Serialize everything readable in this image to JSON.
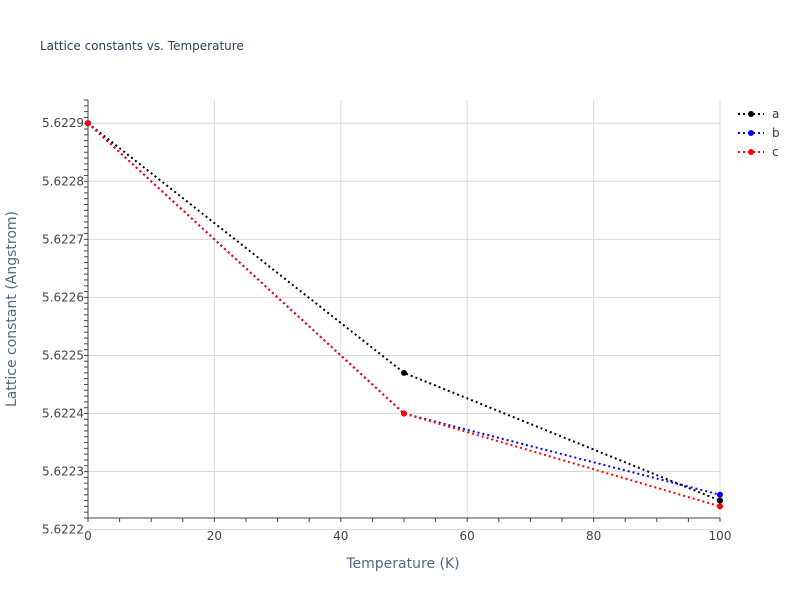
{
  "chart_data": {
    "type": "line",
    "title": "Lattice constants vs. Temperature",
    "xlabel": "Temperature (K)",
    "ylabel": "Lattice constant (Angstrom)",
    "xlim": [
      0,
      100
    ],
    "ylim": [
      5.62222,
      5.62294
    ],
    "xticks": [
      0,
      20,
      40,
      60,
      80,
      100
    ],
    "yticks": [
      5.6222,
      5.6223,
      5.6224,
      5.6225,
      5.6226,
      5.6227,
      5.6228,
      5.6229
    ],
    "grid": true,
    "legend_position": "top-right",
    "x": [
      0,
      50,
      100
    ],
    "series": [
      {
        "name": "a",
        "color": "#000000",
        "values": [
          5.6229,
          5.62247,
          5.62225
        ]
      },
      {
        "name": "b",
        "color": "#0000ff",
        "values": [
          5.6229,
          5.6224,
          5.62226
        ]
      },
      {
        "name": "c",
        "color": "#ff0000",
        "values": [
          5.6229,
          5.6224,
          5.62224
        ]
      }
    ]
  }
}
